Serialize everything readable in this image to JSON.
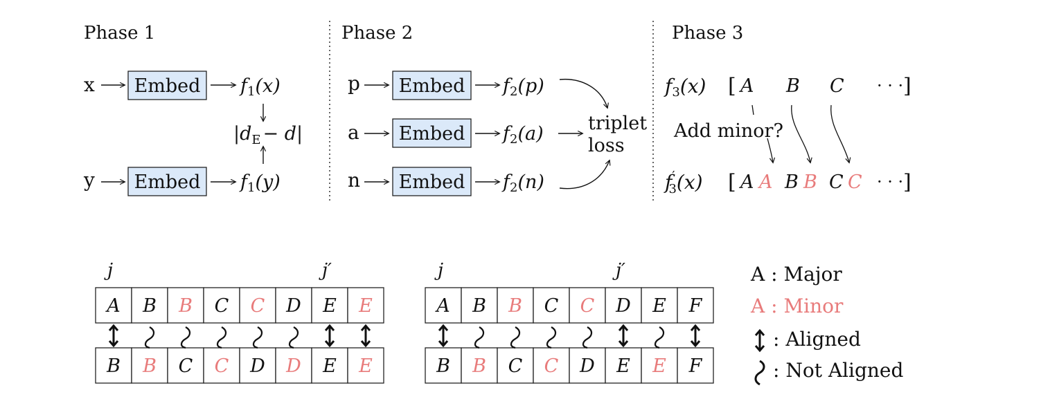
{
  "colors": {
    "ink": "#111111",
    "minor": "#e87b7b",
    "embed_fill": "#dbe9f9",
    "embed_stroke": "#222222"
  },
  "phases": {
    "p1": "Phase 1",
    "p2": "Phase 2",
    "p3": "Phase 3"
  },
  "phase1": {
    "x": "x",
    "y": "y",
    "embed": "Embed",
    "f_sym": "f",
    "f_sub": "1",
    "fx_arg": "(x)",
    "fy_arg": "(y)",
    "dist_d": "d",
    "dist_sub": "E",
    "dist_rest": "− d"
  },
  "phase2": {
    "p": "p",
    "a": "a",
    "n": "n",
    "embed": "Embed",
    "f_sym": "f",
    "f_sub": "2",
    "fp_arg": "(p)",
    "fa_arg": "(a)",
    "fn_arg": "(n)",
    "loss_line1": "triplet",
    "loss_line2": "loss"
  },
  "phase3": {
    "f_sym": "f",
    "f_sub": "3",
    "f_arg": "(x)",
    "fprime_sup": "′",
    "open": "[",
    "close": "]",
    "ellipsis": "· · ·",
    "top_tokens": [
      "A",
      "B",
      "C"
    ],
    "add_minor": "Add minor?",
    "bottom_tokens": [
      {
        "t": "A",
        "minor": false
      },
      {
        "t": "A",
        "minor": true
      },
      {
        "t": "B",
        "minor": false
      },
      {
        "t": "B",
        "minor": true
      },
      {
        "t": "C",
        "minor": false
      },
      {
        "t": "C",
        "minor": true
      }
    ]
  },
  "alignment": {
    "left": {
      "j": "j",
      "jprime": "j′",
      "top": [
        {
          "t": "A",
          "minor": false
        },
        {
          "t": "B",
          "minor": false
        },
        {
          "t": "B",
          "minor": true
        },
        {
          "t": "C",
          "minor": false
        },
        {
          "t": "C",
          "minor": true
        },
        {
          "t": "D",
          "minor": false
        },
        {
          "t": "E",
          "minor": false
        },
        {
          "t": "E",
          "minor": true
        }
      ],
      "bottom": [
        {
          "t": "B",
          "minor": false
        },
        {
          "t": "B",
          "minor": true
        },
        {
          "t": "C",
          "minor": false
        },
        {
          "t": "C",
          "minor": true
        },
        {
          "t": "D",
          "minor": false
        },
        {
          "t": "D",
          "minor": true
        },
        {
          "t": "E",
          "minor": false
        },
        {
          "t": "E",
          "minor": true
        }
      ],
      "links": [
        "aligned",
        "not",
        "not",
        "not",
        "not",
        "not",
        "aligned",
        "aligned"
      ]
    },
    "right": {
      "j": "j",
      "jprime": "j′",
      "top": [
        {
          "t": "A",
          "minor": false
        },
        {
          "t": "B",
          "minor": false
        },
        {
          "t": "B",
          "minor": true
        },
        {
          "t": "C",
          "minor": false
        },
        {
          "t": "C",
          "minor": true
        },
        {
          "t": "D",
          "minor": false
        },
        {
          "t": "E",
          "minor": false
        },
        {
          "t": "F",
          "minor": false
        }
      ],
      "bottom": [
        {
          "t": "B",
          "minor": false
        },
        {
          "t": "B",
          "minor": true
        },
        {
          "t": "C",
          "minor": false
        },
        {
          "t": "C",
          "minor": true
        },
        {
          "t": "D",
          "minor": false
        },
        {
          "t": "E",
          "minor": false
        },
        {
          "t": "E",
          "minor": true
        },
        {
          "t": "F",
          "minor": false
        }
      ],
      "links": [
        "aligned",
        "not",
        "not",
        "not",
        "not",
        "aligned",
        "not",
        "aligned"
      ]
    }
  },
  "legend": {
    "major": "A : Major",
    "minor": "A : Minor",
    "aligned": ":  Aligned",
    "not_aligned": ":  Not Aligned"
  }
}
